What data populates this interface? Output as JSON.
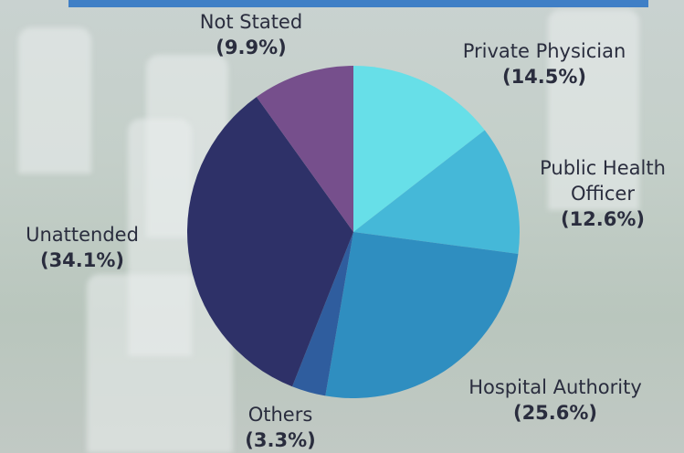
{
  "chart_data": {
    "type": "pie",
    "categories": [
      "Private Physician",
      "Public Health Officer",
      "Hospital Authority",
      "Others",
      "Unattended",
      "Not Stated"
    ],
    "values": [
      14.5,
      12.6,
      25.6,
      3.3,
      34.1,
      9.9
    ],
    "value_labels": [
      "(14.5%)",
      "(12.6%)",
      "(25.6%)",
      "(3.3%)",
      "(34.1%)",
      "(9.9%)"
    ],
    "colors": [
      "#67dfe8",
      "#45b8d8",
      "#2f8ec0",
      "#2f5d9e",
      "#2e3168",
      "#764f8c"
    ]
  }
}
